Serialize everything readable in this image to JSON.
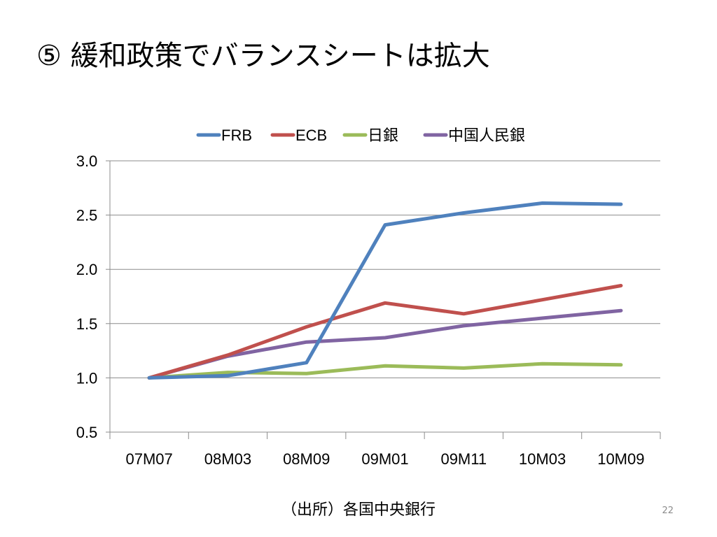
{
  "slide": {
    "title": "⑤ 緩和政策でバランスシートは拡大",
    "source_note": "（出所）各国中央銀行",
    "page_number": "22"
  },
  "chart_data": {
    "type": "line",
    "title": "",
    "xlabel": "",
    "ylabel": "",
    "categories": [
      "07M07",
      "08M03",
      "08M09",
      "09M01",
      "09M11",
      "10M03",
      "10M09"
    ],
    "x": [
      0,
      1,
      2,
      3,
      4,
      5,
      6
    ],
    "ylim": [
      0.5,
      3.0
    ],
    "yticks": [
      "0.5",
      "1.0",
      "1.5",
      "2.0",
      "2.5",
      "3.0"
    ],
    "grid": "horizontal",
    "legend": "top-center",
    "series": [
      {
        "name": "FRB",
        "color": "#4f81bd",
        "values": [
          1.0,
          1.02,
          1.14,
          2.41,
          2.52,
          2.61,
          2.6
        ]
      },
      {
        "name": "ECB",
        "color": "#c0504d",
        "values": [
          1.0,
          1.21,
          1.47,
          1.69,
          1.59,
          1.72,
          1.85
        ]
      },
      {
        "name": "日銀",
        "color": "#9bbb59",
        "values": [
          1.0,
          1.05,
          1.04,
          1.11,
          1.09,
          1.13,
          1.12
        ]
      },
      {
        "name": "中国人民銀",
        "color": "#8064a2",
        "values": [
          1.0,
          1.2,
          1.33,
          1.37,
          1.48,
          1.55,
          1.62
        ]
      }
    ]
  }
}
